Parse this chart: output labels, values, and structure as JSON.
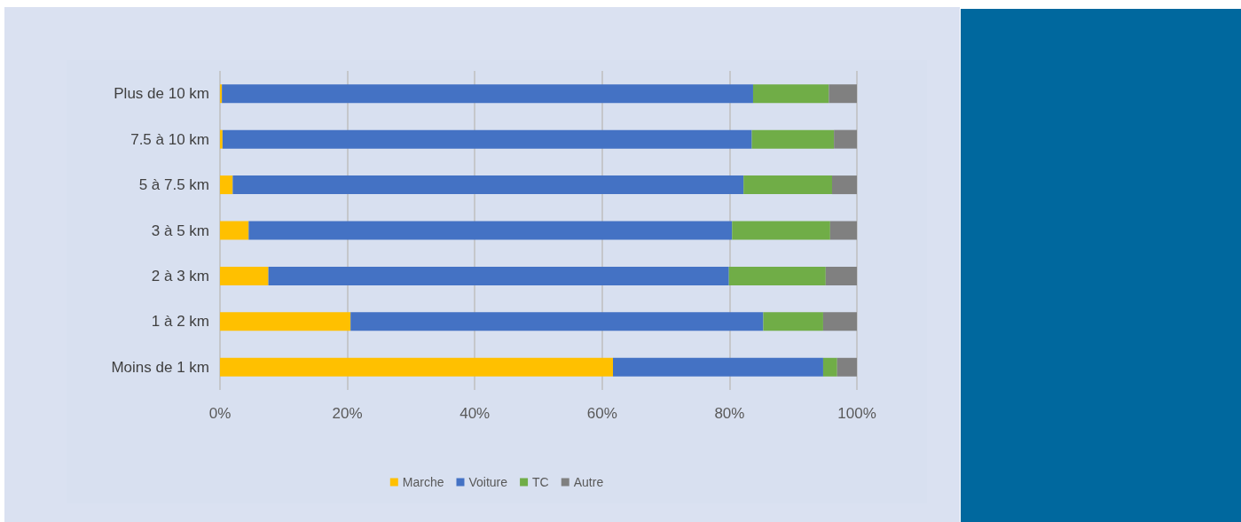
{
  "chart_data": {
    "type": "bar",
    "orientation": "horizontal",
    "stacked": true,
    "categories": [
      "Plus de 10 km",
      "7.5 à 10 km",
      "5 à 7.5 km",
      "3 à 5 km",
      "2 à 3 km",
      "1 à 2 km",
      "Moins de 1 km"
    ],
    "series": [
      {
        "name": "Marche",
        "color": "#ffc000",
        "values": [
          0.3,
          0.4,
          2.0,
          4.5,
          7.6,
          20.5,
          61.7
        ]
      },
      {
        "name": "Voiture",
        "color": "#4472c4",
        "values": [
          83.4,
          83.1,
          80.2,
          75.9,
          72.3,
          64.8,
          33.0
        ]
      },
      {
        "name": "TC",
        "color": "#70ad47",
        "values": [
          11.9,
          12.9,
          13.9,
          15.4,
          15.2,
          9.4,
          2.2
        ]
      },
      {
        "name": "Autre",
        "color": "#808080",
        "values": [
          4.4,
          3.6,
          3.9,
          4.2,
          4.9,
          5.3,
          3.1
        ]
      }
    ],
    "xlim": [
      0,
      100
    ],
    "xticks": [
      {
        "value": 0,
        "label": "0%"
      },
      {
        "value": 20,
        "label": "20%"
      },
      {
        "value": 40,
        "label": "40%"
      },
      {
        "value": 60,
        "label": "60%"
      },
      {
        "value": 80,
        "label": "80%"
      },
      {
        "value": 100,
        "label": "100%"
      }
    ],
    "grid": "x",
    "legend": "bottom"
  }
}
